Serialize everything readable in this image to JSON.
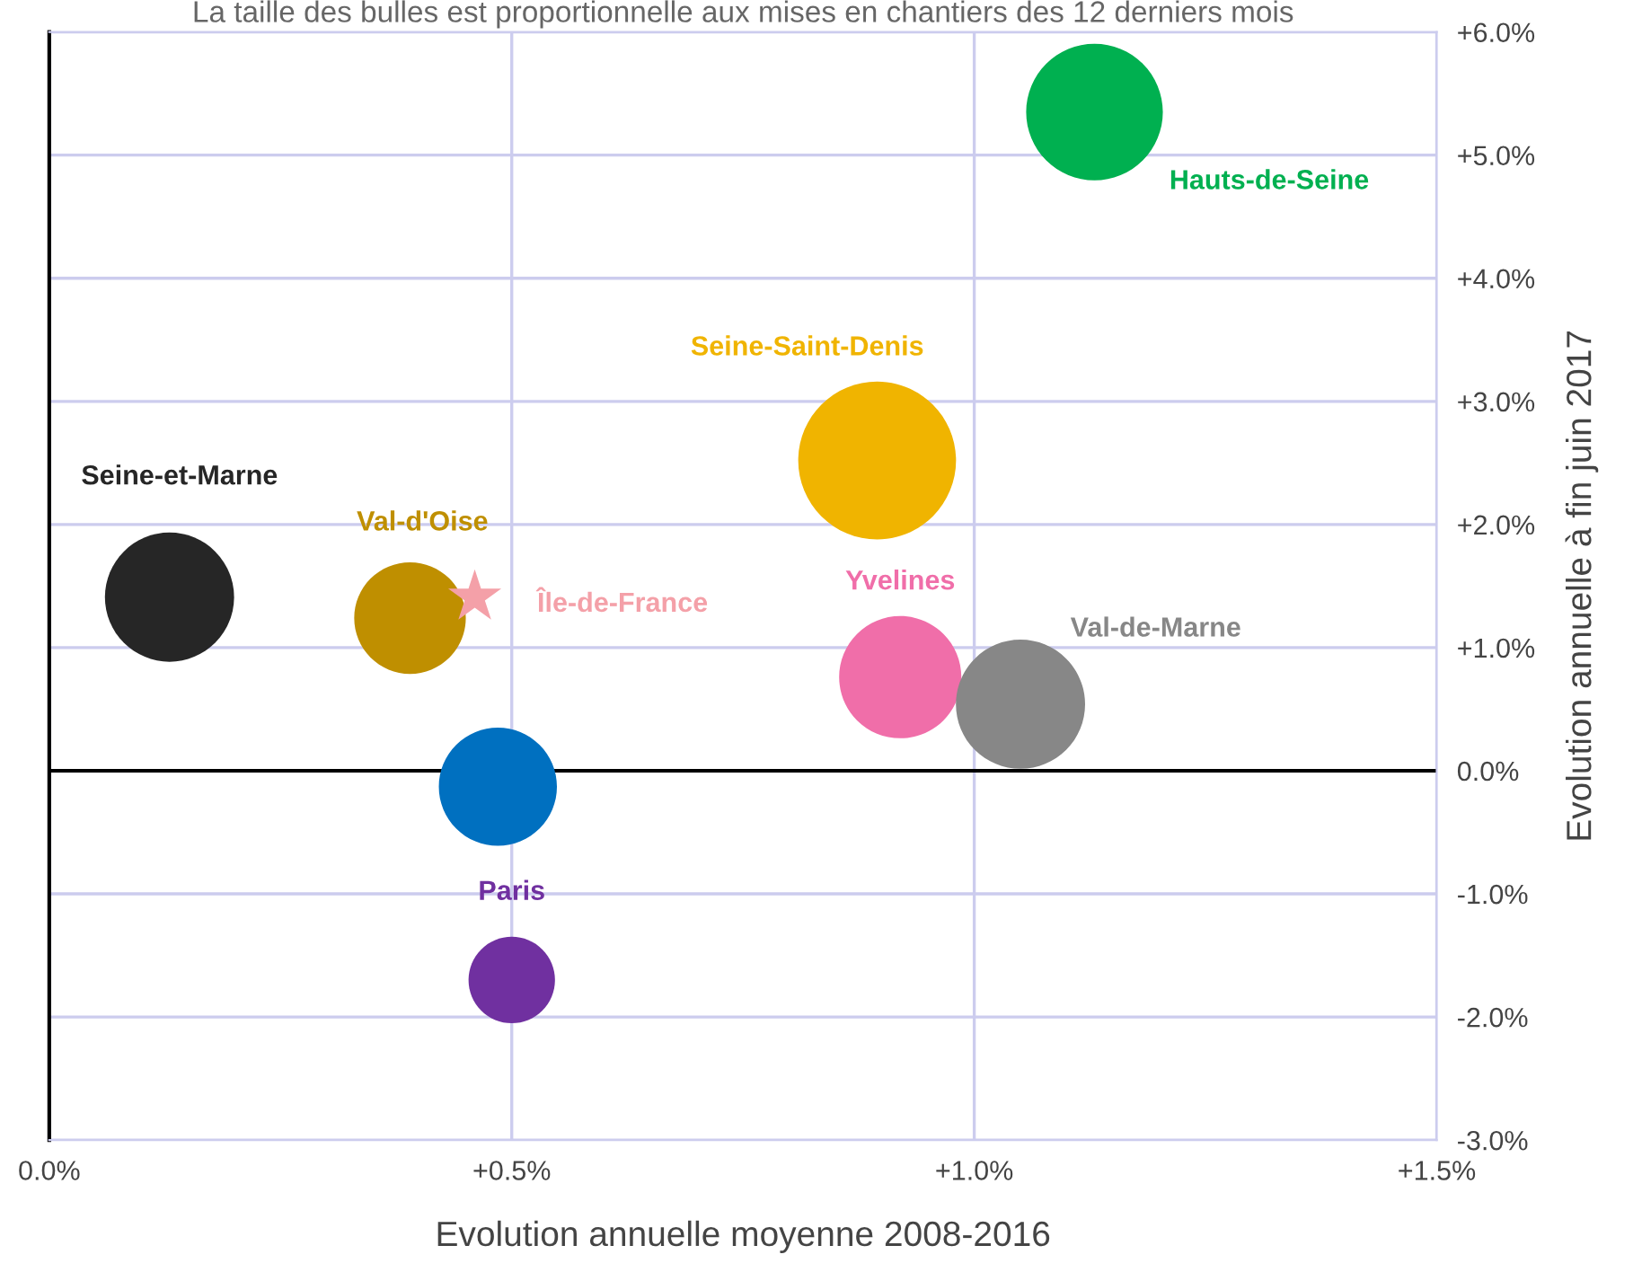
{
  "chart_data": {
    "type": "bubble",
    "title": "La taille des bulles est proportionnelle aux mises en chantiers des 12 derniers mois",
    "xlabel": "Evolution annuelle moyenne 2008-2016",
    "ylabel": "Evolution annuelle à fin juin 2017",
    "xlim": [
      0,
      1.5
    ],
    "xticks": [
      {
        "value": 0,
        "label": "0.0%"
      },
      {
        "value": 0.5,
        "label": "+0.5%"
      },
      {
        "value": 1.0,
        "label": "+1.0%"
      },
      {
        "value": 1.5,
        "label": "+1.5%"
      }
    ],
    "ylim": [
      -3,
      6
    ],
    "yticks": [
      {
        "value": -3,
        "label": "-3.0%"
      },
      {
        "value": -2,
        "label": "-2.0%"
      },
      {
        "value": -1,
        "label": "-1.0%"
      },
      {
        "value": 0,
        "label": "0.0%"
      },
      {
        "value": 1,
        "label": "+1.0%"
      },
      {
        "value": 2,
        "label": "+2.0%"
      },
      {
        "value": 3,
        "label": "+3.0%"
      },
      {
        "value": 4,
        "label": "+4.0%"
      },
      {
        "value": 5,
        "label": "+5.0%"
      },
      {
        "value": 6,
        "label": "+6.0%"
      }
    ],
    "grid": true,
    "legend": false,
    "ref_lines": [
      {
        "axis": "y",
        "value": 0,
        "color": "#000000"
      }
    ],
    "series": [
      {
        "name": "Hauts-de-Seine",
        "color": "#00b050",
        "x": [
          1.13
        ],
        "values": [
          5.35
        ],
        "sizes": [
          0.75
        ]
      },
      {
        "name": "Seine-Saint-Denis",
        "color": "#f0b400",
        "x": [
          0.895
        ],
        "values": [
          2.52
        ],
        "sizes": [
          1.0
        ]
      },
      {
        "name": "Seine-et-Marne",
        "color": "#262626",
        "x": [
          0.13
        ],
        "values": [
          1.41
        ],
        "sizes": [
          0.67
        ]
      },
      {
        "name": "Val-d'Oise",
        "color": "#bf8f00",
        "x": [
          0.39
        ],
        "values": [
          1.24
        ],
        "sizes": [
          0.5
        ]
      },
      {
        "color": "#0070c0",
        "x": [
          0.485
        ],
        "values": [
          -0.13
        ],
        "sizes": [
          0.56
        ]
      },
      {
        "name": "Paris",
        "color": "#7030a0",
        "x": [
          0.5
        ],
        "values": [
          -1.7
        ],
        "sizes": [
          0.3
        ]
      },
      {
        "name": "Yvelines",
        "color": "#f06ea9",
        "x": [
          0.92
        ],
        "values": [
          0.76
        ],
        "sizes": [
          0.6
        ]
      },
      {
        "name": "Val-de-Marne",
        "color": "#878787",
        "x": [
          1.05
        ],
        "values": [
          0.54
        ],
        "sizes": [
          0.67
        ]
      },
      {
        "name": "Île-de-France",
        "type": "scatter",
        "marker": "star",
        "color": "#f4a0a8",
        "x": [
          0.46
        ],
        "values": [
          1.41
        ]
      }
    ]
  }
}
